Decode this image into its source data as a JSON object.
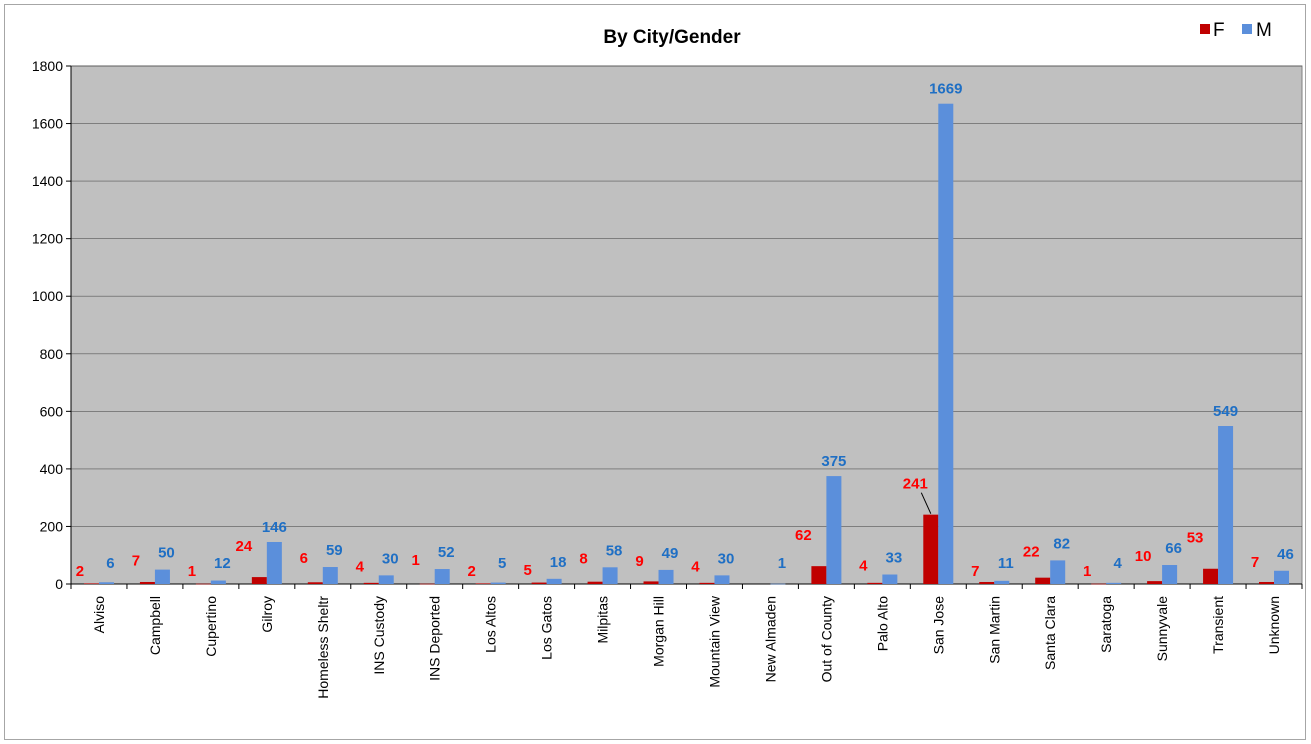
{
  "chart_data": {
    "type": "bar",
    "title": "By City/Gender",
    "xlabel": "",
    "ylabel": "",
    "ylim": [
      0,
      1800
    ],
    "yticks": [
      "0",
      "200",
      "400",
      "600",
      "800",
      "1000",
      "1200",
      "1400",
      "1600",
      "1800"
    ],
    "grid": true,
    "legend_position": "top-right",
    "plot_background": "#c0c0c0",
    "categories": [
      "Alviso",
      "Campbell",
      "Cupertino",
      "Gilroy",
      "Homeless Sheltr",
      "INS Custody",
      "INS Deported",
      "Los Altos",
      "Los Gatos",
      "Milpitas",
      "Morgan Hill",
      "Mountain View",
      "New Almaden",
      "Out of County",
      "Palo Alto",
      "San Jose",
      "San Martin",
      "Santa Clara",
      "Saratoga",
      "Sunnyvale",
      "Transient",
      "Unknown"
    ],
    "series": [
      {
        "name": "F",
        "color": "#c00000",
        "label_color": "#ff0000",
        "values": [
          2,
          7,
          1,
          24,
          6,
          4,
          1,
          2,
          5,
          8,
          9,
          4,
          null,
          62,
          4,
          241,
          7,
          22,
          1,
          10,
          53,
          7
        ]
      },
      {
        "name": "M",
        "color": "#5b8fdb",
        "label_color": "#1f6fc4",
        "values": [
          6,
          50,
          12,
          146,
          59,
          30,
          52,
          5,
          18,
          58,
          49,
          30,
          1,
          375,
          33,
          1669,
          11,
          82,
          4,
          66,
          549,
          46
        ]
      }
    ]
  }
}
